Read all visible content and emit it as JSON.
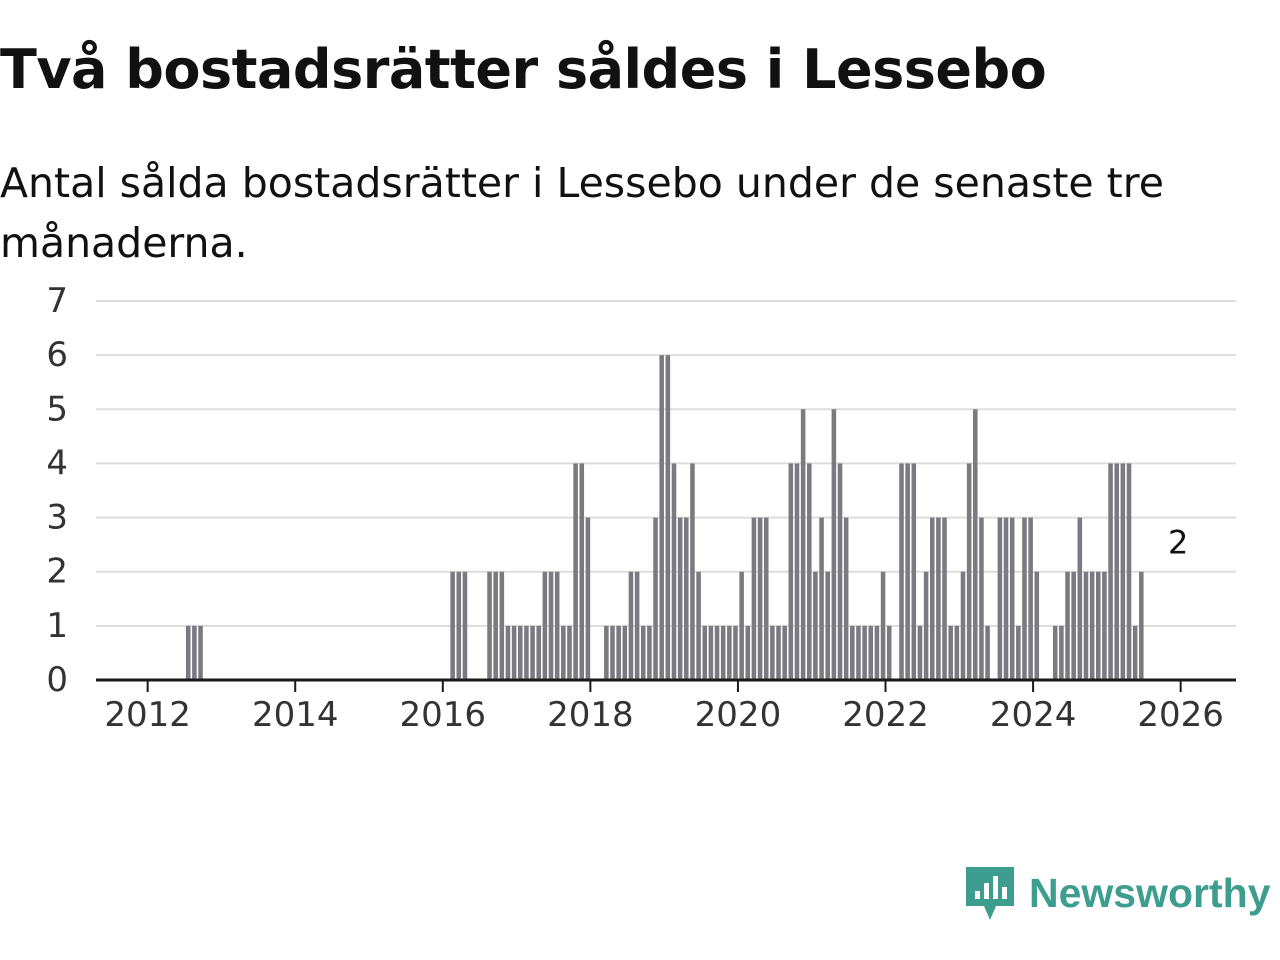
{
  "colors": {
    "bar": "#7a7a80",
    "highlight": "#1ea597",
    "grid": "#dddddd",
    "axis": "#1a1a1a",
    "text": "#333333",
    "brand": "#3d9e8f"
  },
  "brand": {
    "name": "Newsworthy",
    "icon": "newsworthy-logo-icon"
  },
  "chart_data": {
    "type": "bar",
    "title": "Två bostadsrätter såldes i Lessebo",
    "subtitle": "Antal sålda bostadsrätter i Lessebo under de senaste tre månaderna.",
    "xlabel": "",
    "ylabel": "",
    "ylim": [
      0,
      7
    ],
    "yticks": [
      "0",
      "1",
      "2",
      "3",
      "4",
      "5",
      "6",
      "7"
    ],
    "xticks": [
      {
        "label": "2012",
        "value": 2012
      },
      {
        "label": "2014",
        "value": 2014
      },
      {
        "label": "2016",
        "value": 2016
      },
      {
        "label": "2018",
        "value": 2018
      },
      {
        "label": "2020",
        "value": 2020
      },
      {
        "label": "2022",
        "value": 2022
      },
      {
        "label": "2024",
        "value": 2024
      },
      {
        "label": "2026",
        "value": 2026
      }
    ],
    "xlim": [
      2011.3,
      2026.75
    ],
    "x_start": 2011.3,
    "x_step": 0.0833333,
    "values": [
      0,
      0,
      0,
      0,
      0,
      0,
      0,
      0,
      0,
      0,
      0,
      0,
      0,
      0,
      0,
      1,
      1,
      1,
      0,
      0,
      0,
      0,
      0,
      0,
      0,
      0,
      0,
      0,
      0,
      0,
      0,
      0,
      0,
      0,
      0,
      0,
      0,
      0,
      0,
      0,
      0,
      0,
      0,
      0,
      0,
      0,
      0,
      0,
      0,
      0,
      0,
      0,
      0,
      0,
      0,
      0,
      0,
      0,
      2,
      2,
      2,
      0,
      0,
      0,
      2,
      2,
      2,
      1,
      1,
      1,
      1,
      1,
      1,
      2,
      2,
      2,
      1,
      1,
      4,
      4,
      3,
      0,
      0,
      1,
      1,
      1,
      1,
      2,
      2,
      1,
      1,
      3,
      6,
      6,
      4,
      3,
      3,
      4,
      2,
      1,
      1,
      1,
      1,
      1,
      1,
      2,
      1,
      3,
      3,
      3,
      1,
      1,
      1,
      4,
      4,
      5,
      4,
      2,
      3,
      2,
      5,
      4,
      3,
      1,
      1,
      1,
      1,
      1,
      2,
      1,
      0,
      4,
      4,
      4,
      1,
      2,
      3,
      3,
      3,
      1,
      1,
      2,
      4,
      5,
      3,
      1,
      0,
      3,
      3,
      3,
      1,
      3,
      3,
      2,
      0,
      0,
      1,
      1,
      2,
      2,
      3,
      2,
      2,
      2,
      2,
      4,
      4,
      4,
      4,
      1,
      2
    ],
    "highlight": {
      "label": "2",
      "value": 2,
      "index": 176
    }
  }
}
